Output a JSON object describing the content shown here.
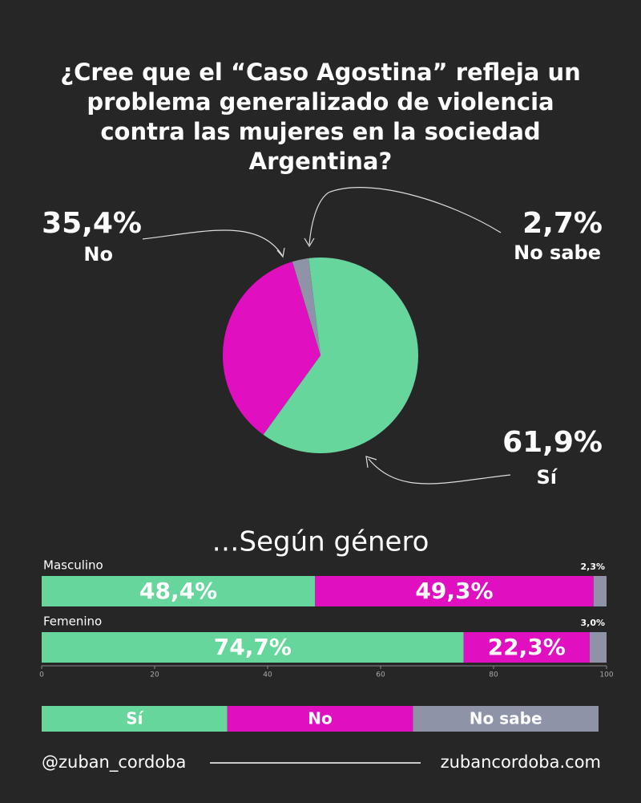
{
  "chart_data": [
    {
      "type": "pie",
      "title": "¿Cree que el “Caso Agostina” refleja un problema generalizado de violencia contra las mujeres en la sociedad Argentina?",
      "categories": [
        "Sí",
        "No",
        "No sabe"
      ],
      "values": [
        61.9,
        35.4,
        2.7
      ],
      "value_labels": [
        "61,9%",
        "35,4%",
        "2,7%"
      ],
      "colors": [
        "#66d69c",
        "#e00fbf",
        "#8e93a8"
      ]
    },
    {
      "type": "stacked-bar-horizontal",
      "title": "…Según género",
      "categories": [
        "Masculino",
        "Femenino"
      ],
      "series": [
        {
          "name": "Sí",
          "color": "#66d69c",
          "values": [
            48.4,
            74.7
          ],
          "value_labels": [
            "48,4%",
            "74,7%"
          ]
        },
        {
          "name": "No",
          "color": "#e00fbf",
          "values": [
            49.3,
            22.3
          ],
          "value_labels": [
            "49,3%",
            "22,3%"
          ]
        },
        {
          "name": "No sabe",
          "color": "#8e93a8",
          "values": [
            2.3,
            3.0
          ],
          "value_labels": [
            "2,3%",
            "3,0%"
          ]
        }
      ],
      "xlim": [
        0,
        100
      ],
      "xticks": [
        0,
        20,
        40,
        60,
        80,
        100
      ]
    }
  ],
  "footer": {
    "handle": "@zuban_cordoba",
    "website": "zubancordoba.com"
  }
}
